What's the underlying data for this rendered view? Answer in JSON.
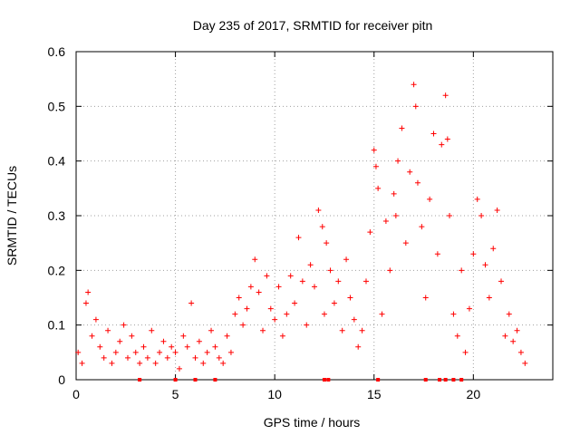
{
  "chart_data": {
    "type": "scatter",
    "title": "Day 235 of 2017, SRMTID for receiver pitn",
    "xlabel": "GPS time / hours",
    "ylabel": "SRMTID / TECUs",
    "xlim": [
      0,
      24
    ],
    "ylim": [
      0,
      0.6
    ],
    "xticks": [
      0,
      5,
      10,
      15,
      20
    ],
    "yticks": [
      0,
      0.1,
      0.2,
      0.3,
      0.4,
      0.5,
      0.6
    ],
    "grid": true,
    "marker": "plus",
    "colors": {
      "series": "#ff0000",
      "grid": "#a0a0a0",
      "axis": "#000000"
    },
    "x": [
      0.1,
      0.3,
      0.5,
      0.6,
      0.8,
      1.0,
      1.2,
      1.4,
      1.6,
      1.8,
      2.0,
      2.2,
      2.4,
      2.6,
      2.8,
      3.0,
      3.2,
      3.4,
      3.6,
      3.8,
      4.0,
      4.2,
      4.4,
      4.6,
      4.8,
      5.0,
      5.2,
      5.4,
      5.6,
      5.8,
      6.0,
      6.2,
      6.4,
      6.6,
      6.8,
      7.0,
      7.2,
      7.4,
      7.6,
      7.8,
      8.0,
      8.2,
      8.4,
      8.6,
      8.8,
      9.0,
      9.2,
      9.4,
      9.6,
      9.8,
      10.0,
      10.2,
      10.4,
      10.6,
      10.8,
      11.0,
      11.2,
      11.4,
      11.6,
      11.8,
      12.0,
      12.2,
      12.4,
      12.5,
      12.6,
      12.8,
      13.0,
      13.2,
      13.4,
      13.6,
      13.8,
      14.0,
      14.2,
      14.4,
      14.6,
      14.8,
      15.0,
      15.1,
      15.2,
      15.4,
      15.6,
      15.8,
      16.0,
      16.1,
      16.2,
      16.4,
      16.6,
      16.8,
      17.0,
      17.1,
      17.2,
      17.4,
      17.6,
      17.8,
      18.0,
      18.2,
      18.4,
      18.6,
      18.7,
      18.8,
      19.0,
      19.2,
      19.4,
      19.6,
      19.8,
      20.0,
      20.2,
      20.4,
      20.6,
      20.8,
      21.0,
      21.2,
      21.4,
      21.6,
      21.8,
      22.0,
      22.2,
      22.4,
      22.6
    ],
    "y": [
      0.05,
      0.03,
      0.14,
      0.16,
      0.08,
      0.11,
      0.06,
      0.04,
      0.09,
      0.03,
      0.05,
      0.07,
      0.1,
      0.04,
      0.08,
      0.05,
      0.03,
      0.06,
      0.04,
      0.09,
      0.03,
      0.05,
      0.07,
      0.04,
      0.06,
      0.05,
      0.02,
      0.08,
      0.06,
      0.14,
      0.04,
      0.07,
      0.03,
      0.05,
      0.09,
      0.06,
      0.04,
      0.03,
      0.08,
      0.05,
      0.12,
      0.15,
      0.1,
      0.13,
      0.17,
      0.22,
      0.16,
      0.09,
      0.19,
      0.13,
      0.11,
      0.17,
      0.08,
      0.12,
      0.19,
      0.14,
      0.26,
      0.18,
      0.1,
      0.21,
      0.17,
      0.31,
      0.28,
      0.12,
      0.25,
      0.2,
      0.14,
      0.18,
      0.09,
      0.22,
      0.15,
      0.11,
      0.06,
      0.09,
      0.18,
      0.27,
      0.42,
      0.39,
      0.35,
      0.12,
      0.29,
      0.2,
      0.34,
      0.3,
      0.4,
      0.46,
      0.25,
      0.38,
      0.54,
      0.5,
      0.36,
      0.28,
      0.15,
      0.33,
      0.45,
      0.23,
      0.43,
      0.52,
      0.44,
      0.3,
      0.12,
      0.08,
      0.2,
      0.05,
      0.13,
      0.23,
      0.33,
      0.3,
      0.21,
      0.15,
      0.24,
      0.31,
      0.18,
      0.08,
      0.12,
      0.07,
      0.09,
      0.05,
      0.03
    ],
    "zero_markers_x": [
      3.2,
      5.0,
      6.0,
      7.0,
      12.5,
      12.7,
      15.2,
      17.6,
      18.3,
      18.6,
      19.0,
      19.4
    ]
  }
}
